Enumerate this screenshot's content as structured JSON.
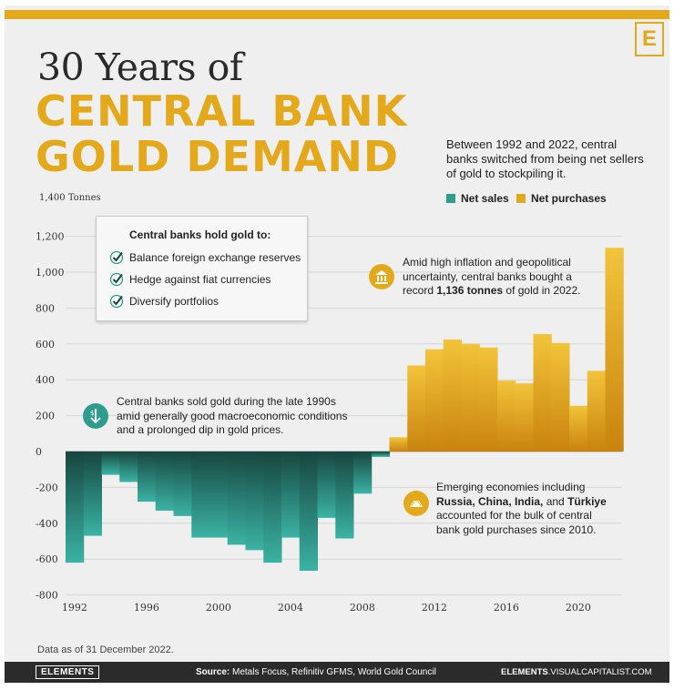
{
  "header": {
    "logo_letter": "E",
    "title_line1": "30 Years of",
    "title_line2": "CENTRAL BANK",
    "title_line3": "GOLD DEMAND",
    "intro": "Between 1992 and 2022, central banks switched from being net sellers of gold to stockpiling it."
  },
  "legend": {
    "net_sales": "Net sales",
    "net_purchases": "Net purchases",
    "net_sales_color": "#2e9c8f",
    "net_purchases_color": "#e4a91b"
  },
  "hold_box": {
    "title": "Central banks hold gold to:",
    "items": [
      "Balance foreign exchange reserves",
      "Hedge against fiat currencies",
      "Diversify portfolios"
    ]
  },
  "annotations": {
    "record_pre": "Amid high inflation and geopolitical uncertainty, central banks bought a record ",
    "record_bold": "1,136 tonnes",
    "record_post": " of gold in 2022.",
    "sold": "Central banks sold gold during the late 1990s amid generally good macroeconomic conditions and a prolonged dip in gold prices.",
    "emerging_pre": "Emerging economies including ",
    "emerging_bold": "Russia, China, India,",
    "emerging_mid": " and ",
    "emerging_bold2": "Türkiye",
    "emerging_post": " accounted for the bulk of central bank gold purchases since 2010."
  },
  "chart_data": {
    "type": "bar",
    "unit_label": "Tonnes",
    "x": [
      1992,
      1993,
      1994,
      1995,
      1996,
      1997,
      1998,
      1999,
      2000,
      2001,
      2002,
      2003,
      2004,
      2005,
      2006,
      2007,
      2008,
      2009,
      2010,
      2011,
      2012,
      2013,
      2014,
      2015,
      2016,
      2017,
      2018,
      2019,
      2020,
      2021,
      2022
    ],
    "values": [
      -620,
      -470,
      -130,
      -170,
      -280,
      -330,
      -360,
      -480,
      -480,
      -520,
      -550,
      -620,
      -480,
      -665,
      -370,
      -485,
      -235,
      -30,
      80,
      480,
      570,
      625,
      600,
      580,
      395,
      380,
      655,
      605,
      255,
      450,
      1136
    ],
    "yticks": [
      1400,
      1200,
      1000,
      800,
      600,
      400,
      200,
      0,
      -200,
      -400,
      -600,
      -800
    ],
    "ytick_labels": [
      "1,400",
      "1,200",
      "1,000",
      "800",
      "600",
      "400",
      "200",
      "0",
      "-200",
      "-400",
      "-600",
      "-800"
    ],
    "xticks": [
      1992,
      1996,
      2000,
      2004,
      2008,
      2012,
      2016,
      2020
    ],
    "ylim": [
      -800,
      1400
    ],
    "grid": true,
    "legend_position": "top-right"
  },
  "footer": {
    "data_note": "Data as of 31 December 2022.",
    "brand": "ELEMENTS",
    "source_label": "Source:",
    "source_text": "Metals Focus, Refinitiv GFMS, World Gold Council",
    "site_bold": "ELEMENTS",
    "site_rest": ".VISUALCAPITALIST.COM"
  }
}
